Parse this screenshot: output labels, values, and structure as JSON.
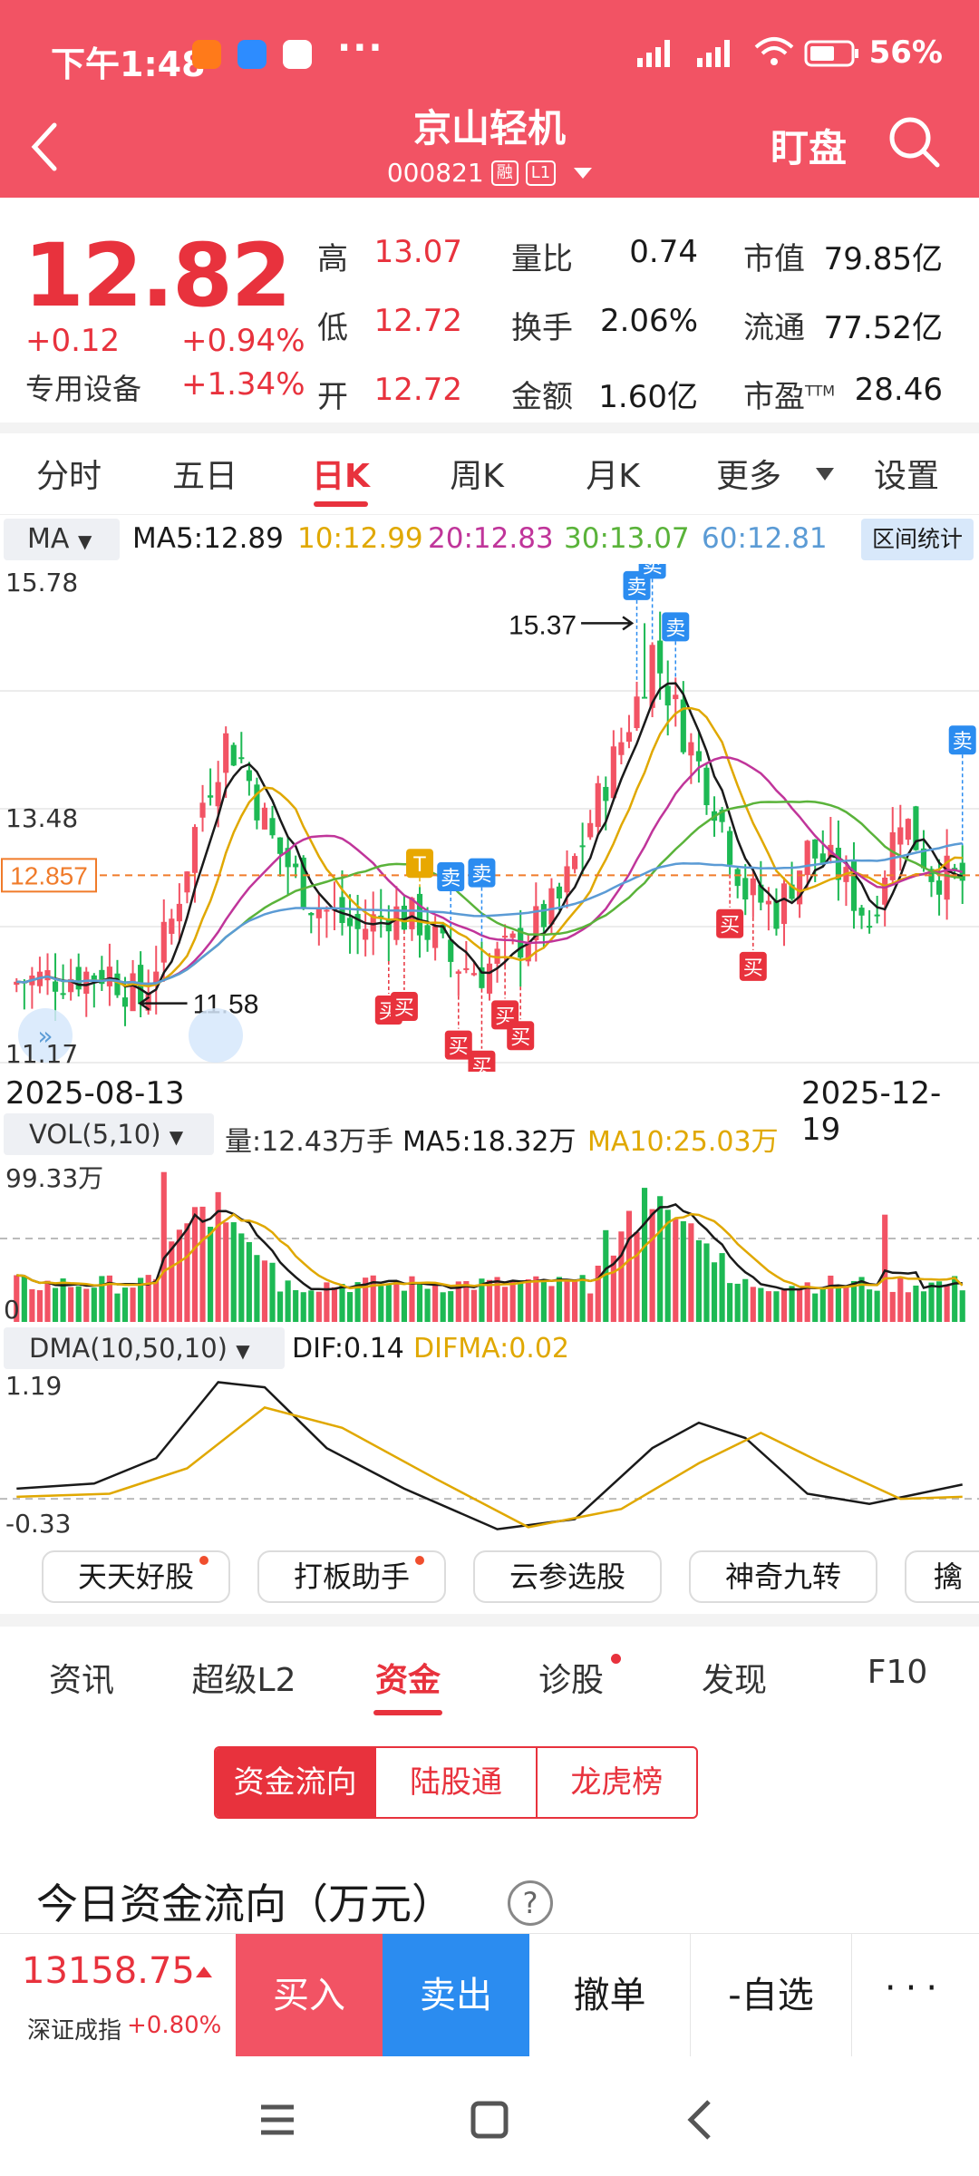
{
  "status_bar": {
    "time": "下午1:48",
    "battery": "56%",
    "more": "···"
  },
  "header": {
    "stock_name": "京山轻机",
    "stock_code": "000821",
    "tag_margin": "融",
    "tag_level": "L1",
    "watch_label": "盯盘",
    "color": "#f25364"
  },
  "quote": {
    "price": "12.82",
    "change": "+0.12",
    "change_pct": "+0.94%",
    "sector": "专用设备",
    "sector_pct": "+1.34%",
    "rows": [
      [
        {
          "label": "高",
          "value": "13.07"
        },
        {
          "label": "量比",
          "value": "0.74"
        },
        {
          "label": "市值",
          "value": "79.85亿"
        }
      ],
      [
        {
          "label": "低",
          "value": "12.72"
        },
        {
          "label": "换手",
          "value": "2.06%"
        },
        {
          "label": "流通",
          "value": "77.52亿"
        }
      ],
      [
        {
          "label": "开",
          "value": "12.72"
        },
        {
          "label": "金额",
          "value": "1.60亿"
        },
        {
          "label": "市盈",
          "value": "28.46",
          "sup": "TTM"
        }
      ]
    ]
  },
  "period_tabs": [
    "分时",
    "五日",
    "日K",
    "周K",
    "月K",
    "更多",
    "设置"
  ],
  "active_period": "日K",
  "ma_bar": {
    "select": "MA",
    "items": [
      {
        "text": "MA5:12.89",
        "color": "#1a1a1a"
      },
      {
        "text": "10:12.99",
        "color": "#e0a800"
      },
      {
        "text": "20:12.83",
        "color": "#c0359a"
      },
      {
        "text": "30:13.07",
        "color": "#5ab33a"
      },
      {
        "text": "60:12.81",
        "color": "#5b9bd5"
      }
    ],
    "range_button": "区间统计"
  },
  "kline": {
    "y_top": "15.78",
    "y_mid": "13.48",
    "y_bottom": "11.17",
    "current_price_label": "12.857",
    "high_label": "15.37",
    "low_label": "11.58",
    "date_start": "2025-08-13",
    "date_end": "2025-12-19",
    "buy_label": "买",
    "sell_label": "卖",
    "t_label": "T",
    "up_color": "#f25364",
    "down_color": "#1db954"
  },
  "volume": {
    "select": "VOL(5,10)",
    "qty": "量:12.43万手",
    "ma5": "MA5:18.32万",
    "ma10": "MA10:25.03万",
    "y_top": "99.33万",
    "y_zero": "0"
  },
  "dma": {
    "select": "DMA(10,50,10)",
    "dif": "DIF:0.14",
    "difma": "DIFMA:0.02",
    "y_top": "1.19",
    "y_bottom": "-0.33"
  },
  "tool_chips": [
    "天天好股",
    "打板助手",
    "云参选股",
    "神奇九转",
    "擒"
  ],
  "bottom_tabs": [
    "资讯",
    "超级L2",
    "资金",
    "诊股",
    "发现",
    "F10"
  ],
  "active_bottom_tab": "资金",
  "segment": [
    "资金流向",
    "陆股通",
    "龙虎榜"
  ],
  "flow_title": "今日资金流向（万元）",
  "help": "?",
  "trade_bar": {
    "index_value": "13158.75",
    "index_name": "深证成指",
    "index_pct": "+0.80%",
    "buy": "买入",
    "sell": "卖出",
    "cancel": "撤单",
    "watchlist": "-自选",
    "more": "···"
  }
}
